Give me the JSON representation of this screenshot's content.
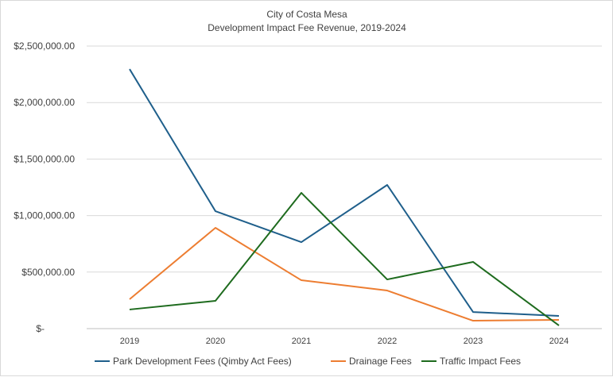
{
  "chart_data": {
    "type": "line",
    "title": "City of Costa Mesa",
    "subtitle": "Development Impact Fee Revenue, 2019-2024",
    "xlabel": "",
    "ylabel": "",
    "categories": [
      "2019",
      "2020",
      "2021",
      "2022",
      "2023",
      "2024"
    ],
    "ylim": [
      0,
      2500000
    ],
    "yticks": [
      0,
      500000,
      1000000,
      1500000,
      2000000,
      2500000
    ],
    "ytick_labels": [
      "$-",
      "$500,000.00",
      "$1,000,000.00",
      "$1,500,000.00",
      "$2,000,000.00",
      "$2,500,000.00"
    ],
    "grid": true,
    "legend_position": "bottom",
    "series": [
      {
        "name": "Park Development Fees  (Qimby Act Fees)",
        "color": "#1f5f8b",
        "values": [
          2296000,
          1039000,
          765000,
          1271000,
          147000,
          112000
        ]
      },
      {
        "name": "Drainage Fees",
        "color": "#ed7d31",
        "values": [
          260000,
          892000,
          428000,
          337000,
          70000,
          77000
        ]
      },
      {
        "name": "Traffic Impact Fees",
        "color": "#1e6b1e",
        "values": [
          169000,
          246000,
          1201000,
          435000,
          590000,
          28000
        ]
      }
    ]
  }
}
